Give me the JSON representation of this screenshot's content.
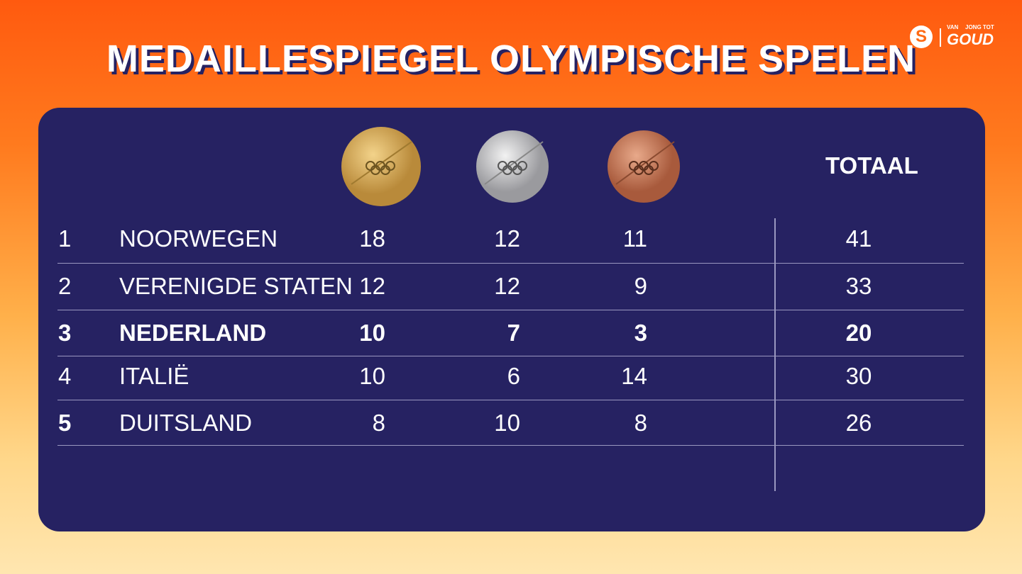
{
  "header": {
    "title": "MEDAILLESPIEGEL OLYMPISCHE SPELEN",
    "logo": {
      "letter": "S",
      "top": "VAN",
      "middle": "JONG TOT",
      "bottom": "GOUD"
    }
  },
  "table": {
    "total_header": "TOTAAL",
    "rows": [
      [
        "1",
        "NOORWEGEN",
        "18",
        "12",
        "11",
        "41"
      ],
      [
        "2",
        "VERENIGDE STATEN",
        "12",
        "12",
        "9",
        "33"
      ],
      [
        "3",
        "NEDERLAND",
        "10",
        "7",
        "3",
        "20"
      ],
      [
        "4",
        "ITALIË",
        "10",
        "6",
        "14",
        "30"
      ],
      [
        "5",
        "DUITSLAND",
        "8",
        "10",
        "8",
        "26"
      ]
    ]
  }
}
